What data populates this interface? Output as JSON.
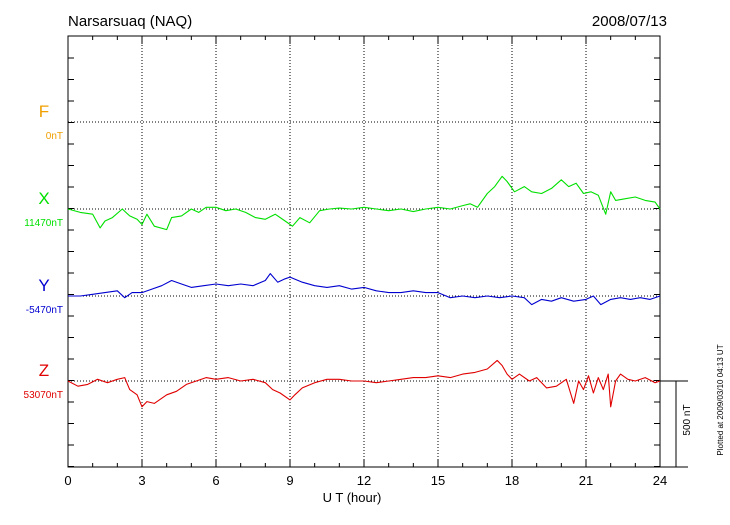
{
  "header": {
    "station": "Narsarsuaq (NAQ)",
    "date": "2008/07/13"
  },
  "footer": {
    "plotted_note": "Plotted at 2009/03/10 04:13 UT"
  },
  "colors": {
    "F": "#f0a000",
    "X": "#00e000",
    "Y": "#0000d0",
    "Z": "#e00000",
    "axis": "#000000",
    "grid": "#000000",
    "background": "#ffffff"
  },
  "chart_data": {
    "type": "line",
    "title": "",
    "xlabel": "U T (hour)",
    "ylabel": "",
    "xlim": [
      0,
      24
    ],
    "x_ticks": [
      0,
      3,
      6,
      9,
      12,
      15,
      18,
      21,
      24
    ],
    "x_tick_labels": [
      "0",
      "3",
      "6",
      "9",
      "12",
      "15",
      "18",
      "21",
      "24"
    ],
    "grid": true,
    "scale_bar": {
      "label": "500 nT",
      "value_nT": 500
    },
    "series": [
      {
        "name": "F",
        "baseline_label": "0nT",
        "baseline_nT": 0,
        "color": "#f0a000",
        "x": [],
        "y": []
      },
      {
        "name": "X",
        "baseline_label": "11470nT",
        "baseline_nT": 11470,
        "color": "#00e000",
        "x": [
          0,
          0.5,
          1,
          1.3,
          1.5,
          1.8,
          2.2,
          2.5,
          2.8,
          3.0,
          3.2,
          3.5,
          4.0,
          4.2,
          4.6,
          5.0,
          5.3,
          5.6,
          6.0,
          6.4,
          6.8,
          7.2,
          7.6,
          8.0,
          8.4,
          8.8,
          9.1,
          9.4,
          9.8,
          10.2,
          10.6,
          11,
          11.5,
          12,
          12.5,
          13,
          13.5,
          14,
          14.5,
          15,
          15.5,
          16,
          16.3,
          16.6,
          17,
          17.3,
          17.6,
          17.8,
          18.1,
          18.5,
          18.8,
          19.2,
          19.6,
          20,
          20.3,
          20.6,
          20.9,
          21.2,
          21.5,
          21.8,
          22.0,
          22.2,
          22.6,
          23.0,
          23.4,
          23.8,
          24
        ],
        "y": [
          11470,
          11450,
          11440,
          11360,
          11400,
          11420,
          11470,
          11430,
          11410,
          11380,
          11440,
          11370,
          11350,
          11420,
          11430,
          11470,
          11450,
          11480,
          11480,
          11460,
          11470,
          11450,
          11420,
          11410,
          11440,
          11400,
          11370,
          11420,
          11390,
          11460,
          11470,
          11475,
          11470,
          11480,
          11470,
          11460,
          11470,
          11455,
          11470,
          11480,
          11470,
          11490,
          11500,
          11480,
          11560,
          11600,
          11660,
          11630,
          11570,
          11600,
          11570,
          11560,
          11590,
          11640,
          11600,
          11620,
          11560,
          11570,
          11550,
          11440,
          11570,
          11520,
          11530,
          11540,
          11520,
          11510,
          11470
        ]
      },
      {
        "name": "Y",
        "baseline_label": "-5470nT",
        "baseline_nT": -5470,
        "color": "#0000d0",
        "x": [
          0,
          0.5,
          1,
          1.5,
          2.0,
          2.3,
          2.6,
          3.0,
          3.4,
          3.8,
          4.2,
          4.6,
          5.0,
          5.5,
          6.0,
          6.5,
          7.0,
          7.5,
          8.0,
          8.2,
          8.5,
          8.8,
          9.0,
          9.5,
          10,
          10.5,
          11,
          11.5,
          12,
          12.5,
          13,
          13.5,
          14,
          14.5,
          15,
          15.5,
          16,
          16.5,
          17,
          17.5,
          18,
          18.5,
          18.8,
          19.2,
          19.6,
          20,
          20.5,
          21,
          21.3,
          21.6,
          22,
          22.4,
          22.8,
          23.2,
          23.6,
          24
        ],
        "y": [
          -5470,
          -5470,
          -5460,
          -5450,
          -5440,
          -5480,
          -5450,
          -5450,
          -5430,
          -5410,
          -5380,
          -5400,
          -5420,
          -5410,
          -5400,
          -5410,
          -5400,
          -5410,
          -5380,
          -5340,
          -5390,
          -5370,
          -5360,
          -5390,
          -5410,
          -5420,
          -5410,
          -5430,
          -5420,
          -5440,
          -5450,
          -5450,
          -5440,
          -5450,
          -5450,
          -5480,
          -5470,
          -5480,
          -5470,
          -5480,
          -5470,
          -5480,
          -5520,
          -5490,
          -5500,
          -5480,
          -5500,
          -5490,
          -5470,
          -5520,
          -5490,
          -5480,
          -5490,
          -5480,
          -5490,
          -5470
        ]
      },
      {
        "name": "Z",
        "baseline_label": "53070nT",
        "baseline_nT": 53070,
        "color": "#e00000",
        "x": [
          0,
          0.4,
          0.8,
          1.2,
          1.6,
          2.0,
          2.3,
          2.5,
          2.8,
          3.0,
          3.2,
          3.5,
          4.0,
          4.4,
          4.8,
          5.2,
          5.6,
          6.0,
          6.5,
          7.0,
          7.5,
          8.0,
          8.3,
          8.6,
          9.0,
          9.2,
          9.5,
          10,
          10.5,
          11,
          11.5,
          12,
          12.5,
          13,
          13.5,
          14,
          14.5,
          15,
          15.5,
          16,
          16.5,
          17,
          17.4,
          17.6,
          17.8,
          18.0,
          18.3,
          18.7,
          19,
          19.4,
          19.8,
          20.2,
          20.5,
          20.7,
          20.9,
          21.1,
          21.3,
          21.5,
          21.7,
          21.9,
          22.0,
          22.2,
          22.4,
          22.7,
          23.0,
          23.4,
          23.8,
          24
        ],
        "y": [
          53070,
          53040,
          53050,
          53080,
          53060,
          53080,
          53090,
          53020,
          52990,
          52920,
          52950,
          52940,
          52990,
          53010,
          53050,
          53070,
          53090,
          53080,
          53090,
          53070,
          53080,
          53060,
          53020,
          53000,
          52960,
          52990,
          53030,
          53060,
          53080,
          53080,
          53070,
          53070,
          53060,
          53070,
          53080,
          53090,
          53090,
          53100,
          53090,
          53110,
          53120,
          53140,
          53190,
          53160,
          53110,
          53080,
          53110,
          53070,
          53090,
          53030,
          53040,
          53080,
          52940,
          53070,
          53020,
          53100,
          53000,
          53090,
          53020,
          53110,
          52920,
          53070,
          53110,
          53080,
          53070,
          53090,
          53060,
          53070
        ]
      }
    ]
  }
}
